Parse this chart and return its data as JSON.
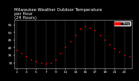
{
  "title": "Milwaukee Weather Outdoor Temperature\nper Hour\n(24 Hours)",
  "hours": [
    1,
    2,
    3,
    4,
    5,
    6,
    7,
    8,
    9,
    10,
    11,
    12,
    13,
    14,
    15,
    16,
    17,
    18,
    19,
    20,
    21,
    22,
    23,
    24
  ],
  "temps": [
    38,
    36,
    34,
    32,
    31,
    30,
    29,
    30,
    32,
    36,
    40,
    44,
    48,
    52,
    54,
    53,
    51,
    48,
    45,
    42,
    39,
    37,
    35,
    34
  ],
  "ylim": [
    26,
    58
  ],
  "xlim": [
    0.5,
    24.5
  ],
  "dot_color": "#ff0000",
  "bg_color": "#000000",
  "plot_bg_color": "#000000",
  "grid_color": "#666666",
  "legend_color": "#ff0000",
  "ytick_labels": [
    "30",
    "35",
    "40",
    "45",
    "50",
    "55"
  ],
  "yticks": [
    30,
    35,
    40,
    45,
    50,
    55
  ],
  "xtick_labels": [
    "1",
    "3",
    "5",
    "7",
    "9",
    "11",
    "13",
    "15",
    "17",
    "19",
    "21",
    "23"
  ],
  "xticks": [
    1,
    3,
    5,
    7,
    9,
    11,
    13,
    15,
    17,
    19,
    21,
    23
  ],
  "title_fontsize": 3.8,
  "tick_fontsize": 3.2,
  "title_color": "#ffffff",
  "tick_color": "#ffffff"
}
